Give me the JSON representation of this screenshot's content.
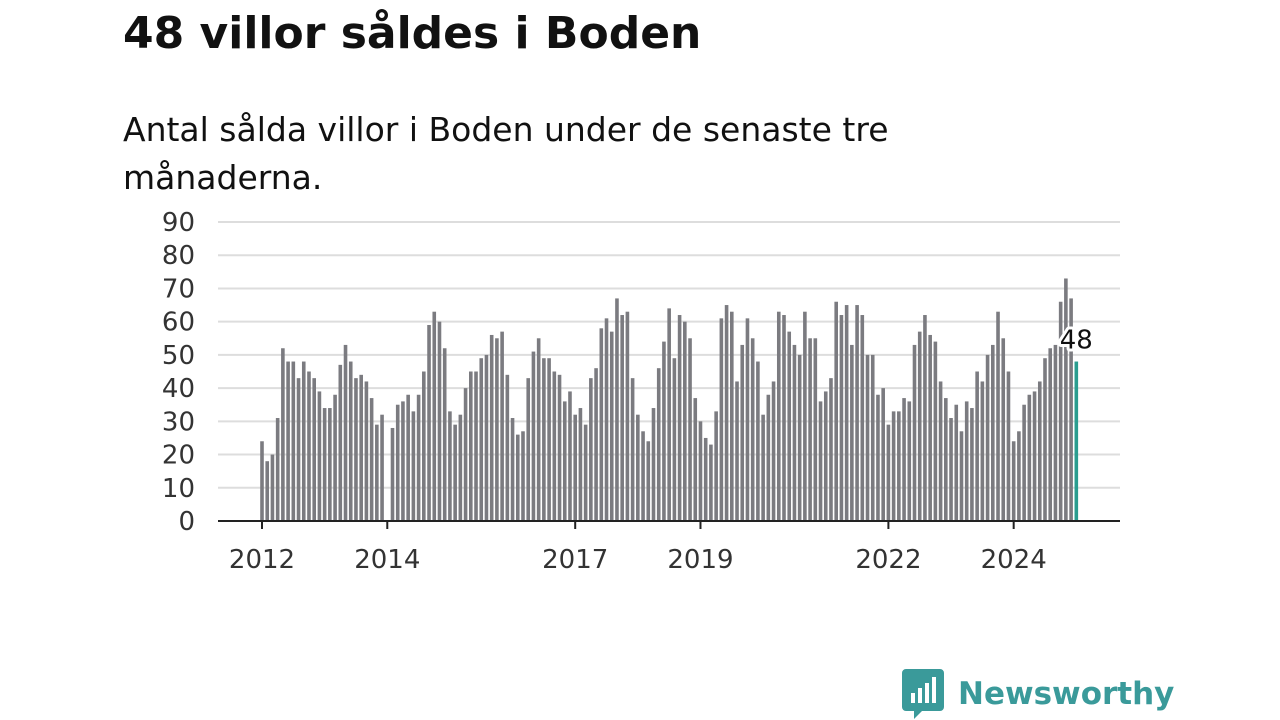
{
  "title": "48 villor såldes i Boden",
  "subtitle": "Antal sålda villor i Boden under de senaste tre månaderna.",
  "brand": {
    "name": "Newsworthy",
    "logo_icon": "newsworthy-logo-icon"
  },
  "colors": {
    "bar": "#7b7b80",
    "highlight": "#2a9d8f",
    "grid": "#dddddd",
    "axis": "#222222",
    "brand": "#3a9a9a"
  },
  "chart_data": {
    "type": "bar",
    "title": "48 villor såldes i Boden",
    "subtitle": "Antal sålda villor i Boden under de senaste tre månaderna.",
    "xlabel": "",
    "ylabel": "",
    "ylim": [
      0,
      90
    ],
    "yticks": [
      0,
      10,
      20,
      30,
      40,
      50,
      60,
      70,
      80,
      90
    ],
    "xticks": [
      "2012",
      "2014",
      "2017",
      "2019",
      "2022",
      "2024"
    ],
    "grid": true,
    "legend": "none",
    "start_period": "2012-01",
    "frequency": "monthly",
    "highlight_last": true,
    "last_value_label": "48",
    "values": [
      24,
      18,
      20,
      31,
      52,
      48,
      48,
      43,
      48,
      45,
      43,
      39,
      34,
      34,
      38,
      47,
      53,
      48,
      43,
      44,
      42,
      37,
      29,
      32,
      0,
      28,
      35,
      36,
      38,
      33,
      38,
      45,
      59,
      63,
      60,
      52,
      33,
      29,
      32,
      40,
      45,
      45,
      49,
      50,
      56,
      55,
      57,
      44,
      31,
      26,
      27,
      43,
      51,
      55,
      49,
      49,
      45,
      44,
      36,
      39,
      32,
      34,
      29,
      43,
      46,
      58,
      61,
      57,
      67,
      62,
      63,
      43,
      32,
      27,
      24,
      34,
      46,
      54,
      64,
      49,
      62,
      60,
      55,
      37,
      30,
      25,
      23,
      33,
      61,
      65,
      63,
      42,
      53,
      61,
      55,
      48,
      32,
      38,
      42,
      63,
      62,
      57,
      53,
      50,
      63,
      55,
      55,
      36,
      39,
      43,
      66,
      62,
      65,
      53,
      65,
      62,
      50,
      50,
      38,
      40,
      29,
      33,
      33,
      37,
      36,
      53,
      57,
      62,
      56,
      54,
      42,
      37,
      31,
      35,
      27,
      36,
      34,
      45,
      42,
      50,
      53,
      63,
      55,
      45,
      24,
      27,
      35,
      38,
      39,
      42,
      49,
      52,
      53,
      66,
      73,
      67,
      48
    ]
  }
}
